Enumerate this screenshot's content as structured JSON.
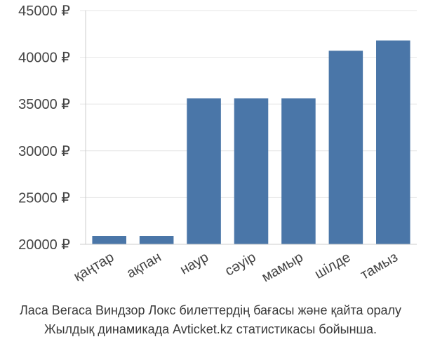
{
  "chart_data": {
    "type": "bar",
    "title": "",
    "xlabel": "",
    "ylabel": "",
    "categories": [
      "қаңтар",
      "ақпан",
      "наур",
      "сәуір",
      "мамыр",
      "шілде",
      "тамыз"
    ],
    "values": [
      20900,
      20900,
      35600,
      35600,
      35600,
      40700,
      41800
    ],
    "ylim": [
      20000,
      45000
    ],
    "yticks": [
      20000,
      25000,
      30000,
      35000,
      40000,
      45000
    ],
    "currency": "₽",
    "grid": true,
    "bar_color": "#4a76a8",
    "grid_color": "#e6e6e6"
  },
  "caption": {
    "line1": "Ласа Вегаса Виндзор Локс билеттердің бағасы және қайта оралу",
    "line2": "Жылдық динамикада Avticket.kz статистикасы бойынша."
  }
}
